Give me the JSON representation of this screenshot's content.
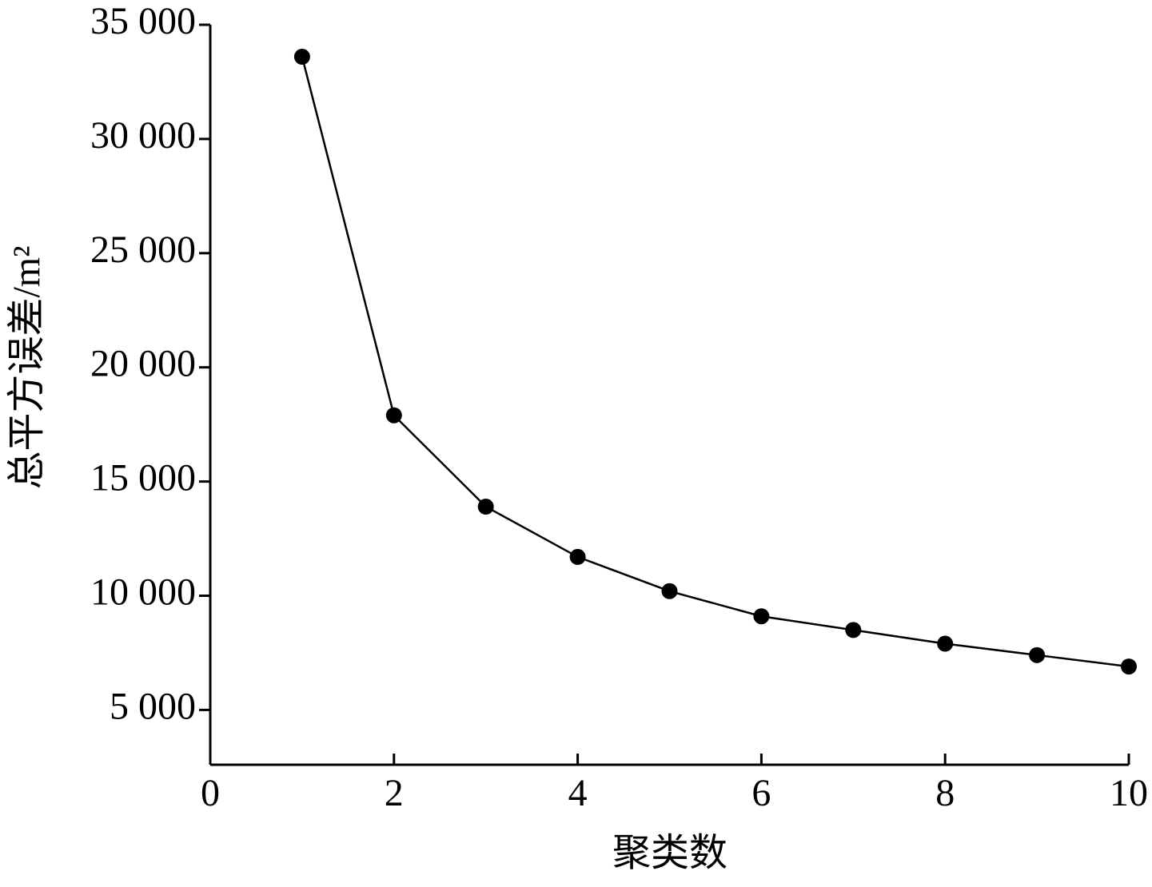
{
  "chart_data": {
    "type": "line",
    "x_label": "聚类数",
    "y_label": "总平方误差/m²",
    "x": [
      1,
      2,
      3,
      4,
      5,
      6,
      7,
      8,
      9,
      10
    ],
    "series": [
      {
        "name": null,
        "color": "#000000",
        "values": [
          33600,
          17900,
          13900,
          11700,
          10200,
          9100,
          8500,
          7900,
          7400,
          6900
        ]
      }
    ],
    "xlim": [
      0,
      10
    ],
    "ylim": [
      2600,
      35000
    ],
    "xticks": [
      0,
      2,
      4,
      6,
      8,
      10
    ],
    "yticks": [
      {
        "value": 5000,
        "label": "5 000"
      },
      {
        "value": 10000,
        "label": "10 000"
      },
      {
        "value": 15000,
        "label": "15 000"
      },
      {
        "value": 20000,
        "label": "20 000"
      },
      {
        "value": 25000,
        "label": "25 000"
      },
      {
        "value": 30000,
        "label": "30 000"
      },
      {
        "value": 35000,
        "label": "35 000"
      }
    ],
    "grid": false
  }
}
